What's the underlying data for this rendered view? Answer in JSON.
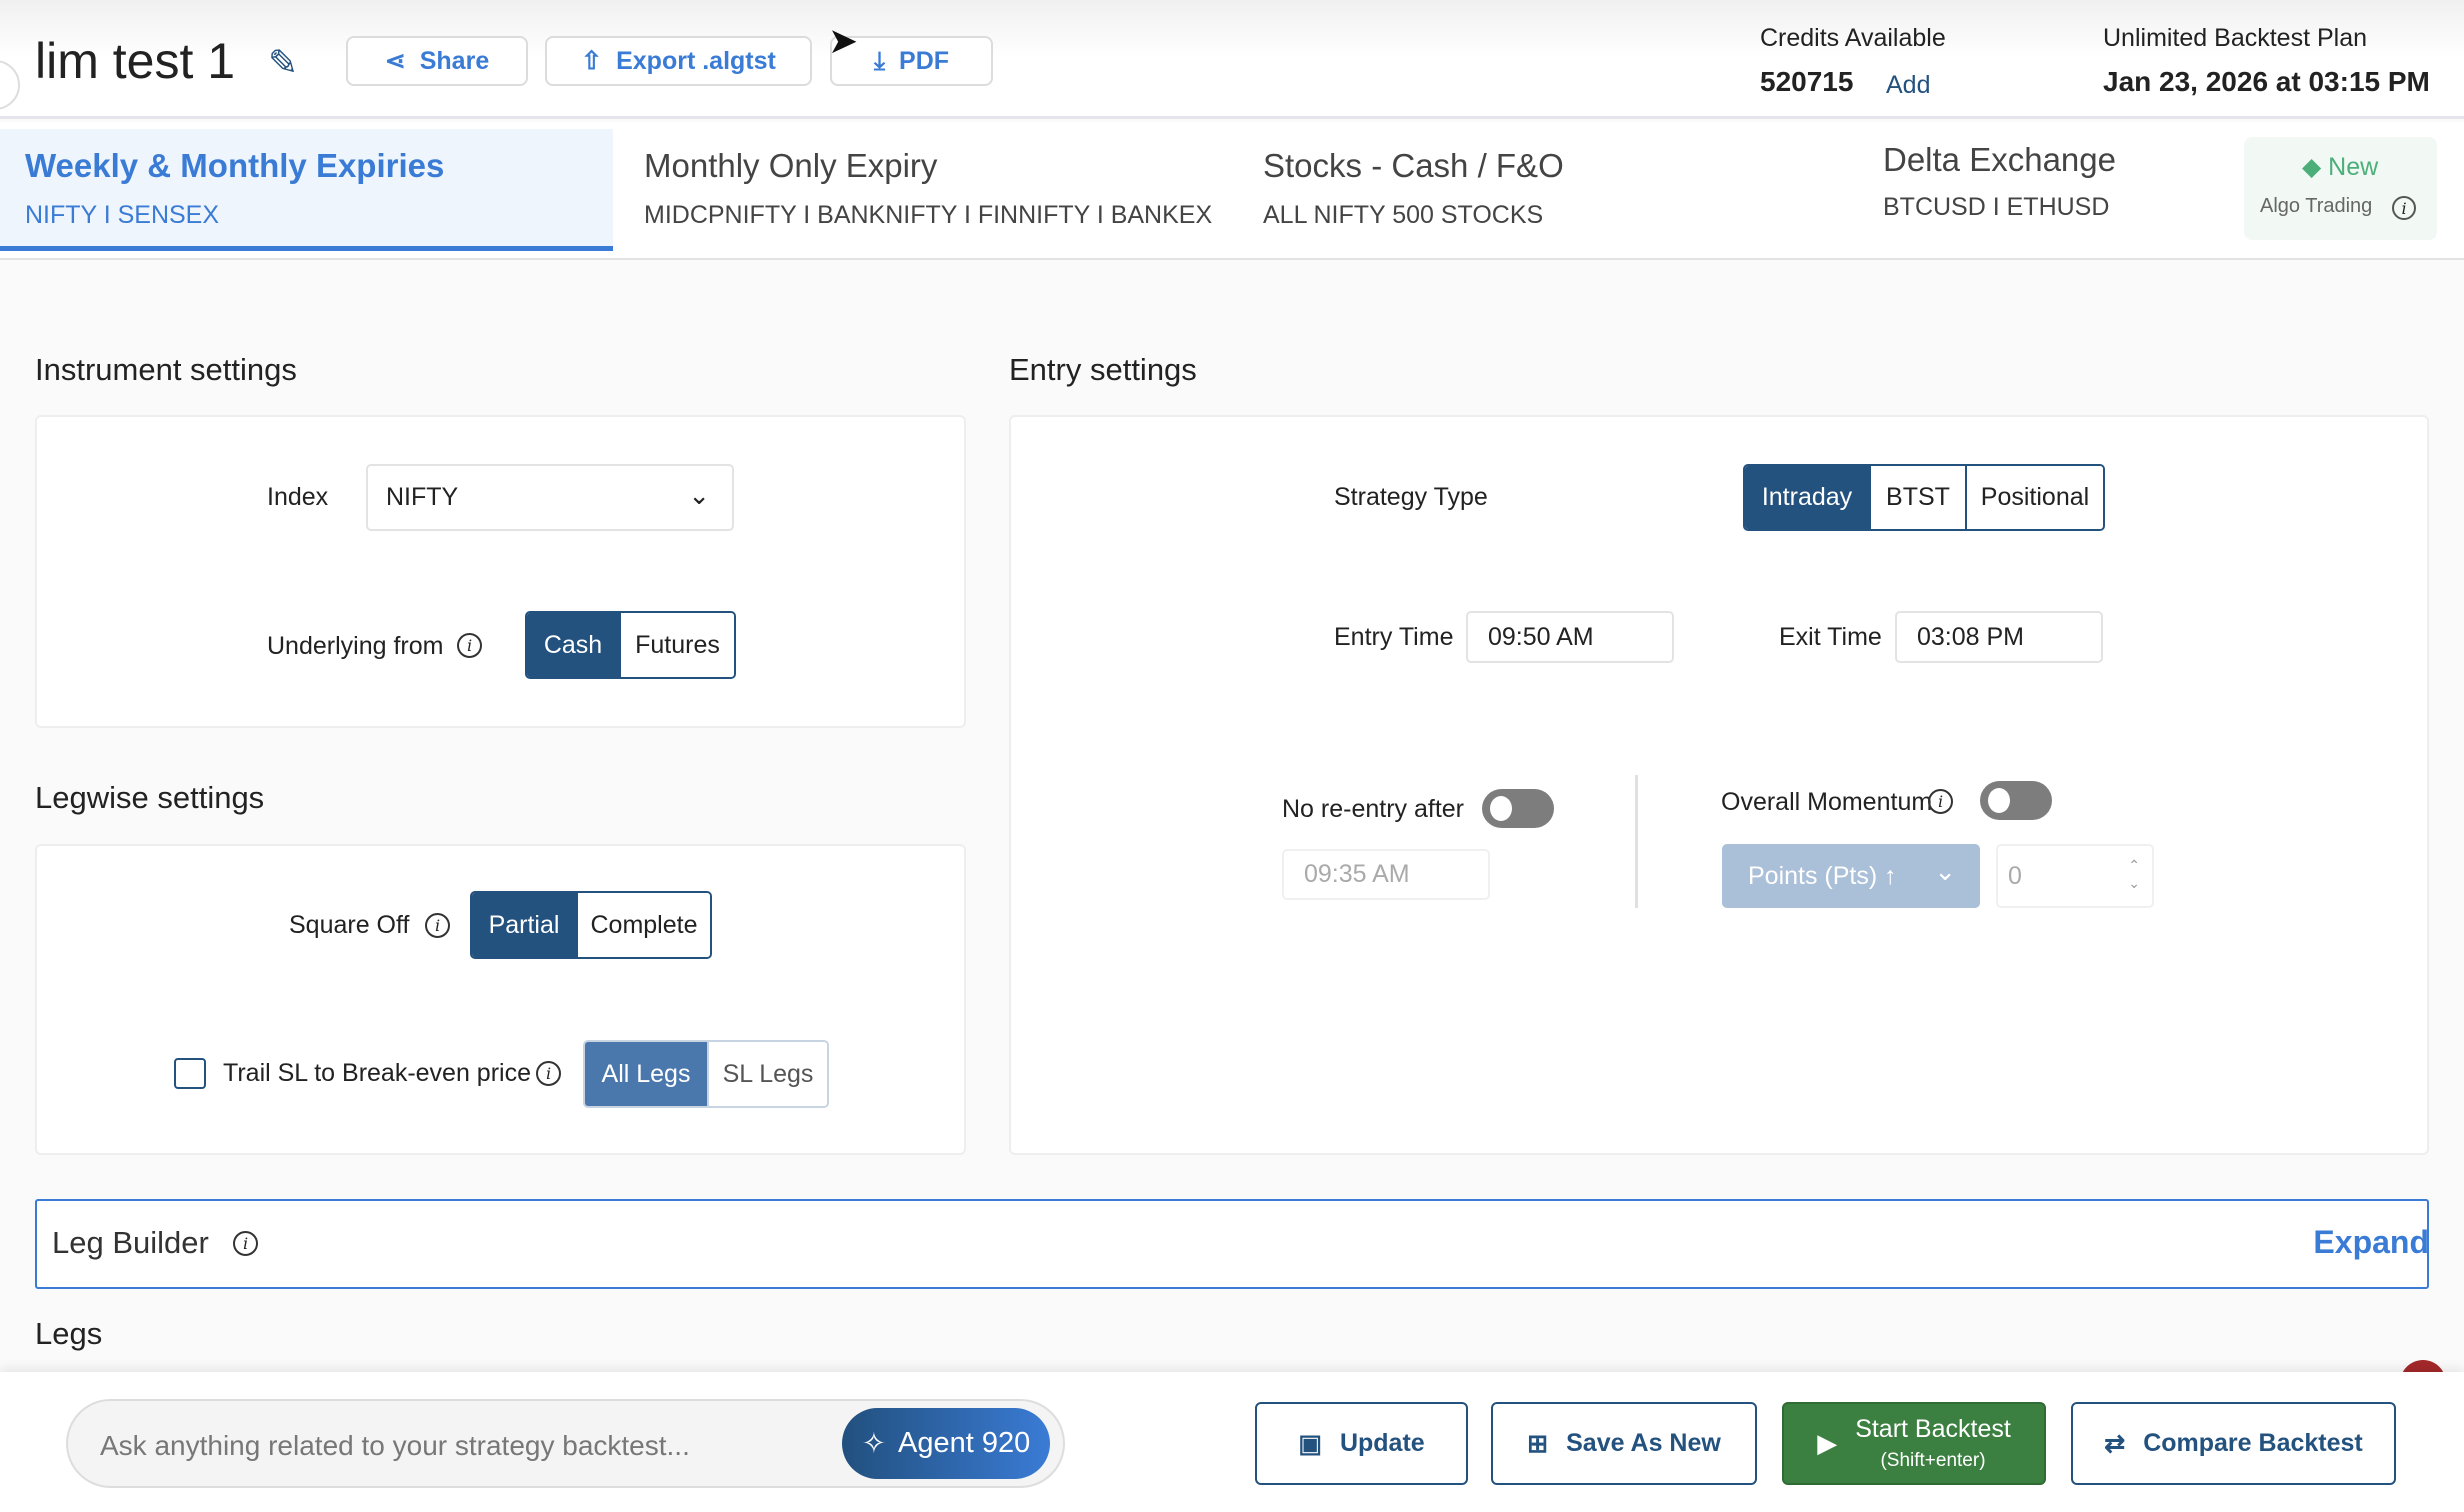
{
  "header": {
    "title": "lim test 1",
    "share": "Share",
    "export": "Export .algtst",
    "pdf": "PDF",
    "credits_label": "Credits Available",
    "credits_value": "520715",
    "add": "Add",
    "plan_label": "Unlimited Backtest Plan",
    "plan_expiry": "Jan 23, 2026 at 03:15 PM"
  },
  "tabs": [
    {
      "title": "Weekly & Monthly Expiries",
      "sub": "NIFTY I SENSEX"
    },
    {
      "title": "Monthly Only Expiry",
      "sub": "MIDCPNIFTY I BANKNIFTY I FINNIFTY I BANKEX"
    },
    {
      "title": "Stocks - Cash / F&O",
      "sub": "ALL NIFTY 500 STOCKS"
    },
    {
      "title": "Delta Exchange",
      "sub": "BTCUSD I ETHUSD"
    }
  ],
  "algo": {
    "badge": "New",
    "label": "Algo Trading"
  },
  "instrument": {
    "heading": "Instrument settings",
    "index_label": "Index",
    "index_value": "NIFTY",
    "underlying_label": "Underlying from",
    "underlying_options": [
      "Cash",
      "Futures"
    ]
  },
  "legwise": {
    "heading": "Legwise settings",
    "square_off_label": "Square Off",
    "square_off_options": [
      "Partial",
      "Complete"
    ],
    "trail_label": "Trail SL to Break-even price",
    "trail_options": [
      "All Legs",
      "SL Legs"
    ]
  },
  "entry": {
    "heading": "Entry settings",
    "strategy_label": "Strategy Type",
    "strategy_options": [
      "Intraday",
      "BTST",
      "Positional"
    ],
    "entry_time_label": "Entry Time",
    "entry_time": "09:50 AM",
    "exit_time_label": "Exit Time",
    "exit_time": "03:08 PM",
    "no_reentry_label": "No re-entry after",
    "no_reentry_time": "09:35 AM",
    "momentum_label": "Overall Momentum",
    "momentum_type": "Points (Pts) ↑",
    "momentum_value": "0"
  },
  "leg_builder": {
    "label": "Leg Builder",
    "expand": "Expand"
  },
  "legs": {
    "heading": "Legs"
  },
  "footer": {
    "placeholder": "Ask anything related to your strategy backtest...",
    "agent": "Agent 920",
    "update": "Update",
    "save_new": "Save As New",
    "start": "Start Backtest",
    "start_hint": "(Shift+enter)",
    "compare": "Compare Backtest"
  },
  "colors": {
    "primary": "#24527f",
    "accent": "#3a7bd5",
    "success": "#3b8040",
    "new_badge": "#4caf7a"
  }
}
